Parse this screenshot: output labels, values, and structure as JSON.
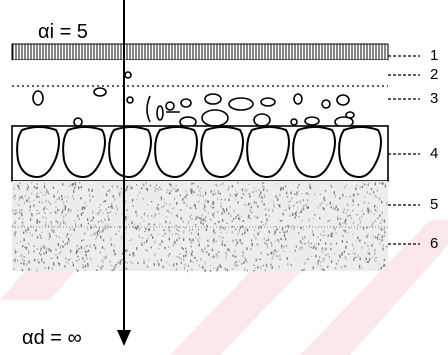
{
  "top_label": "αi = 5",
  "bottom_label": "αd = ∞",
  "layers": [
    {
      "number": "1",
      "pattern": "vertical-hatch"
    },
    {
      "number": "2",
      "pattern": "plain"
    },
    {
      "number": "3",
      "pattern": "scattered-voids"
    },
    {
      "number": "4",
      "pattern": "aggregate-stones"
    },
    {
      "number": "5",
      "pattern": "stippled"
    },
    {
      "number": "6",
      "pattern": "stippled"
    }
  ],
  "watermark_color": "#f6d6da"
}
